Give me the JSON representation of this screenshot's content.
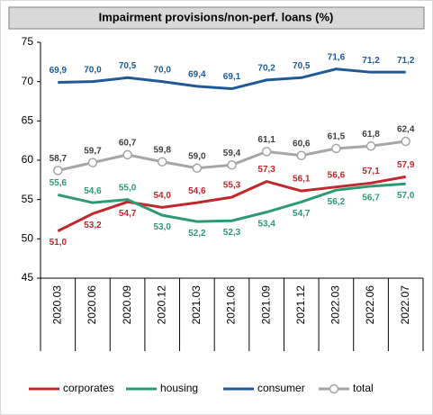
{
  "chart_data": {
    "type": "line",
    "title": "Impairment provisions/non-perf. loans (%)",
    "categories": [
      "2020.03",
      "2020.06",
      "2020.09",
      "2020.12",
      "2021.03",
      "2021.06",
      "2021.09",
      "2021.12",
      "2022.03",
      "2022.06",
      "2022.07"
    ],
    "ylim": [
      45,
      75
    ],
    "yticks": [
      45,
      50,
      55,
      60,
      65,
      70,
      75
    ],
    "grid": false,
    "legend": "bottom",
    "series": [
      {
        "name": "corporates",
        "color": "#c0282d",
        "values": [
          51.0,
          53.2,
          54.7,
          54.0,
          54.6,
          55.3,
          57.3,
          56.1,
          56.6,
          57.1,
          57.9
        ],
        "value_labels": [
          "51,0",
          "53,2",
          "54,7",
          "54,0",
          "54,6",
          "55,3",
          "57,3",
          "56,1",
          "56,6",
          "57,1",
          "57,9"
        ]
      },
      {
        "name": "housing",
        "color": "#2e9a74",
        "values": [
          55.6,
          54.6,
          55.0,
          53.0,
          52.2,
          52.3,
          53.4,
          54.7,
          56.2,
          56.7,
          57.0
        ],
        "value_labels": [
          "55,6",
          "54,6",
          "55,0",
          "53,0",
          "52,2",
          "52,3",
          "53,4",
          "54,7",
          "56,2",
          "56,7",
          "57,0"
        ]
      },
      {
        "name": "consumer",
        "color": "#1f5a96",
        "values": [
          69.9,
          70.0,
          70.5,
          70.0,
          69.4,
          69.1,
          70.2,
          70.5,
          71.6,
          71.2,
          71.2
        ],
        "value_labels": [
          "69,9",
          "70,0",
          "70,5",
          "70,0",
          "69,4",
          "69,1",
          "70,2",
          "70,5",
          "71,6",
          "71,2",
          "71,2"
        ]
      },
      {
        "name": "total",
        "color": "#a6a6a6",
        "values": [
          58.7,
          59.7,
          60.7,
          59.8,
          59.0,
          59.4,
          61.1,
          60.6,
          61.5,
          61.8,
          62.4
        ],
        "value_labels": [
          "58,7",
          "59,7",
          "60,7",
          "59,8",
          "59,0",
          "59,4",
          "61,1",
          "60,6",
          "61,5",
          "61,8",
          "62,4"
        ]
      }
    ]
  }
}
